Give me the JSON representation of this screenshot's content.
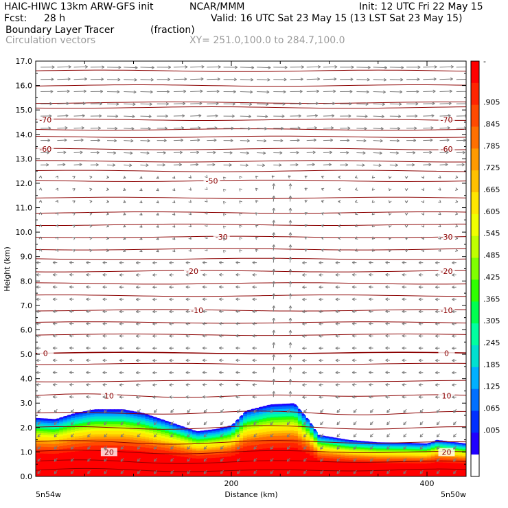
{
  "header": {
    "model": "HAIC-HIWC 13km ARW-GFS init",
    "org": "NCAR/MMM",
    "init": "Init: 12 UTC Fri 22 May 15",
    "fcst_label": "Fcst:",
    "fcst_value": "28 h",
    "valid": "Valid: 16 UTC Sat 23 May 15 (13 LST Sat 23 May 15)",
    "field": "Boundary Layer Tracer",
    "field_units": "(fraction)",
    "vectors": "Circulation vectors",
    "xy": "XY= 251.0,100.0 to 284.7,100.0"
  },
  "chart_data": {
    "type": "heatmap",
    "ylabel": "Height (km)",
    "xlabel": "Distance (km)",
    "xlim": [
      0,
      440
    ],
    "ylim": [
      0,
      17
    ],
    "y_ticks": [
      "0.0",
      "1.0",
      "2.0",
      "3.0",
      "4.0",
      "5.0",
      "6.0",
      "7.0",
      "8.0",
      "9.0",
      "10.0",
      "11.0",
      "12.0",
      "13.0",
      "14.0",
      "15.0",
      "16.0",
      "17.0"
    ],
    "x_ticks": [
      "200",
      "400"
    ],
    "x_tick_values": [
      200,
      400
    ],
    "x_left_label": "5n54w",
    "x_right_label": "5n50w",
    "colorbar_labels": [
      "-",
      ".905",
      ".845",
      ".785",
      ".725",
      ".665",
      ".605",
      ".545",
      ".485",
      ".425",
      ".365",
      ".305",
      ".245",
      ".185",
      ".125",
      ".065",
      ".005"
    ],
    "colorbar_colors": [
      "#ff0000",
      "#ff2400",
      "#ff4a00",
      "#ff7000",
      "#ff9a00",
      "#ffc000",
      "#ffe600",
      "#f0ff00",
      "#c0ff00",
      "#80ff00",
      "#30ff00",
      "#00ff50",
      "#00ffa0",
      "#00e0d0",
      "#00b0ff",
      "#0070ff",
      "#0030ff",
      "#2000ff",
      "#ffffff"
    ],
    "tracer_top_km": [
      [
        0,
        2.4
      ],
      [
        20,
        2.35
      ],
      [
        40,
        2.6
      ],
      [
        60,
        2.75
      ],
      [
        90,
        2.75
      ],
      [
        110,
        2.6
      ],
      [
        140,
        2.2
      ],
      [
        165,
        1.85
      ],
      [
        185,
        1.95
      ],
      [
        200,
        2.1
      ],
      [
        215,
        2.7
      ],
      [
        240,
        2.95
      ],
      [
        265,
        3.0
      ],
      [
        280,
        2.3
      ],
      [
        290,
        1.7
      ],
      [
        320,
        1.5
      ],
      [
        350,
        1.4
      ],
      [
        380,
        1.38
      ],
      [
        400,
        1.35
      ],
      [
        410,
        1.5
      ],
      [
        420,
        1.45
      ],
      [
        440,
        1.35
      ]
    ],
    "isotherms": [
      {
        "label": "-70",
        "y_km": 14.6,
        "side": "both"
      },
      {
        "label": "-60",
        "y_km": 13.4,
        "side": "both"
      },
      {
        "label": "-50",
        "y_km": 12.1,
        "side": "mid"
      },
      {
        "label": "-30",
        "y_km": 9.8,
        "side": "both"
      },
      {
        "label": "-20",
        "y_km": 8.4,
        "side": "both"
      },
      {
        "label": "-10",
        "y_km": 6.8,
        "side": "both"
      },
      {
        "label": "0",
        "y_km": 5.05,
        "side": "both"
      },
      {
        "label": "10",
        "y_km": 3.3,
        "side": "both"
      },
      {
        "label": "20",
        "y_km": 1.0,
        "side": "both"
      }
    ],
    "extra_isotherm_levels_km": [
      0.25,
      0.6,
      1.4,
      2.0,
      2.6,
      3.9,
      4.6,
      5.8,
      6.3,
      7.4,
      7.9,
      8.9,
      9.3,
      10.3,
      10.8,
      11.4,
      12.5,
      12.9,
      13.9,
      14.2,
      15.1,
      15.3,
      16.0,
      16.6
    ]
  }
}
